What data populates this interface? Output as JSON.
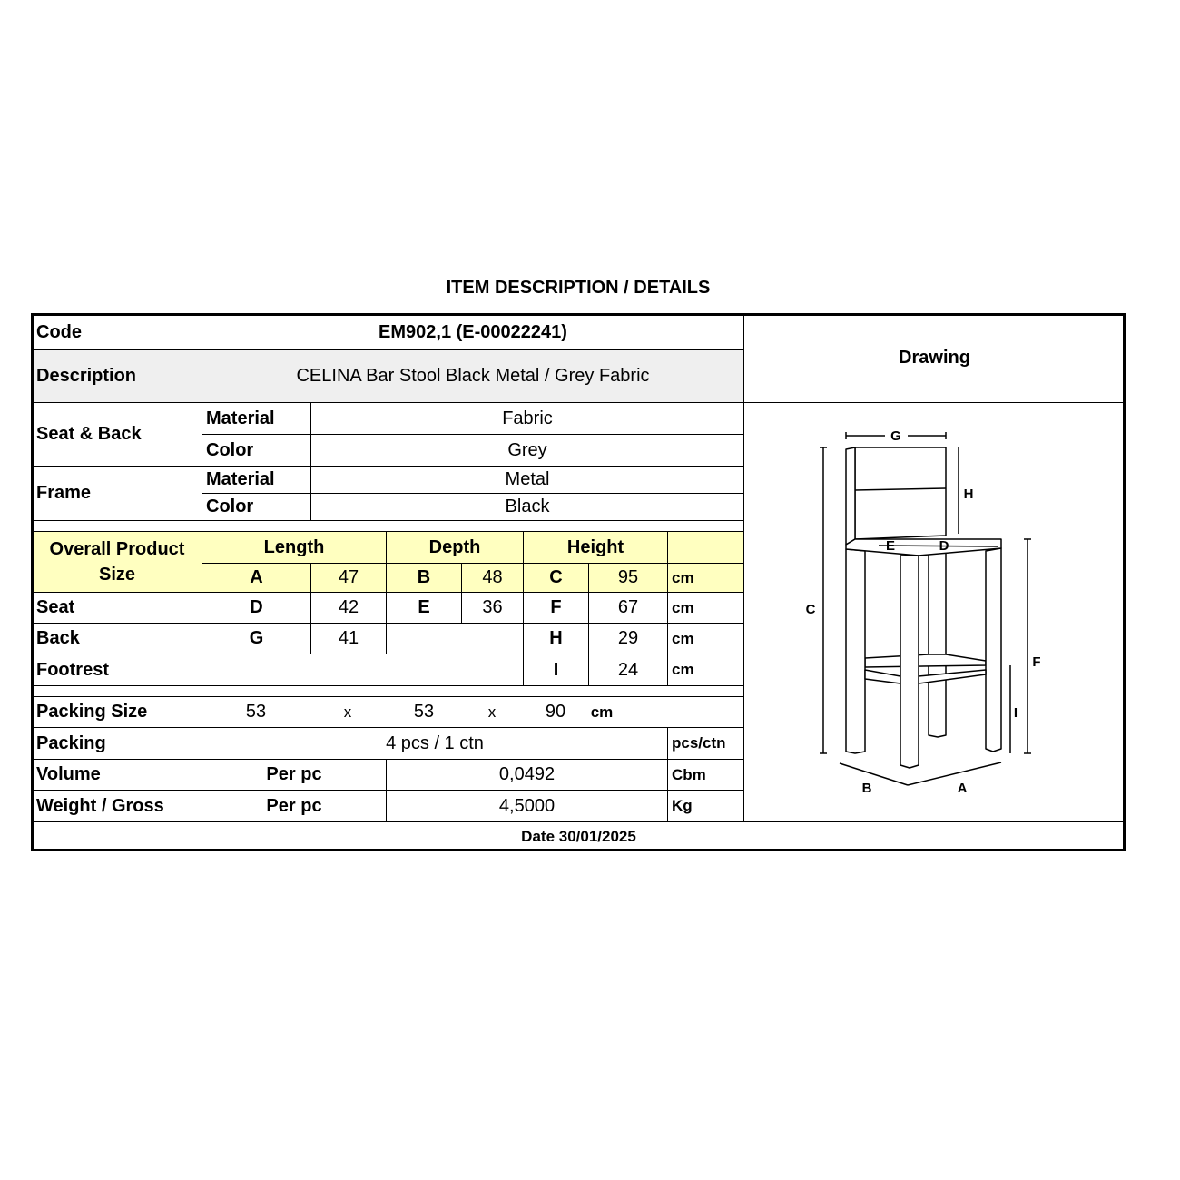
{
  "title": "ITEM DESCRIPTION / DETAILS",
  "code": {
    "label": "Code",
    "value": "EM902,1 (E-00022241)"
  },
  "description": {
    "label": "Description",
    "value": "CELINA Bar Stool Black Metal / Grey Fabric"
  },
  "drawing": {
    "label": "Drawing",
    "dimension_letters": [
      "A",
      "B",
      "C",
      "D",
      "E",
      "F",
      "G",
      "H",
      "I"
    ]
  },
  "seat_back": {
    "label": "Seat & Back",
    "material_label": "Material",
    "material": "Fabric",
    "color_label": "Color",
    "color": "Grey"
  },
  "frame": {
    "label": "Frame",
    "material_label": "Material",
    "material": "Metal",
    "color_label": "Color",
    "color": "Black"
  },
  "size": {
    "label": "Overall Product Size",
    "length_label": "Length",
    "depth_label": "Depth",
    "height_label": "Height",
    "rows": [
      {
        "label": "",
        "l": "A",
        "lv": "47",
        "d": "B",
        "dv": "48",
        "h": "C",
        "hv": "95",
        "unit": "cm"
      },
      {
        "label": "Seat",
        "l": "D",
        "lv": "42",
        "d": "E",
        "dv": "36",
        "h": "F",
        "hv": "67",
        "unit": "cm"
      },
      {
        "label": "Back",
        "l": "G",
        "lv": "41",
        "d": "",
        "dv": "",
        "h": "H",
        "hv": "29",
        "unit": "cm"
      },
      {
        "label": "Footrest",
        "l": "",
        "lv": "",
        "d": "",
        "dv": "",
        "h": "I",
        "hv": "24",
        "unit": "cm"
      }
    ]
  },
  "packing_size": {
    "label": "Packing Size",
    "l": "53",
    "x1": "x",
    "d": "53",
    "x2": "x",
    "h": "90",
    "unit": "cm"
  },
  "packing": {
    "label": "Packing",
    "value": "4 pcs / 1 ctn",
    "unit": "pcs/ctn"
  },
  "volume": {
    "label": "Volume",
    "basis": "Per pc",
    "value": "0,0492",
    "unit": "Cbm"
  },
  "weight": {
    "label": "Weight / Gross",
    "basis": "Per pc",
    "value": "4,5000",
    "unit": "Kg"
  },
  "date": "Date 30/01/2025",
  "colors": {
    "header_highlight": "#ffffc0",
    "description_bg": "#efefef"
  }
}
